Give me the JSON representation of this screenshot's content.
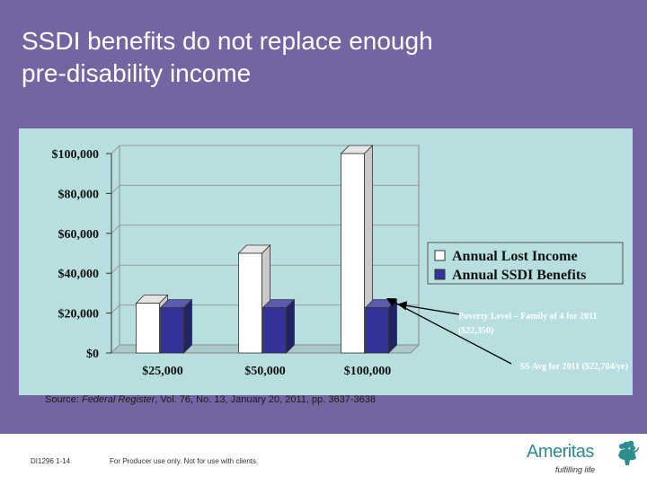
{
  "slide": {
    "title_line1": "SSDI benefits do not replace enough",
    "title_line2": "pre-disability income"
  },
  "chart_data": {
    "type": "bar",
    "categories": [
      "$25,000",
      "$50,000",
      "$100,000"
    ],
    "series": [
      {
        "name": "Annual Lost Income",
        "values": [
          25000,
          50000,
          100000
        ],
        "color": "#ffffff"
      },
      {
        "name": "Annual SSDI Benefits",
        "values": [
          22704,
          22704,
          22704
        ],
        "color": "#33339a"
      }
    ],
    "y_ticks": [
      0,
      20000,
      40000,
      60000,
      80000,
      100000
    ],
    "y_tick_labels": [
      "$0",
      "$20,000",
      "$40,000",
      "$60,000",
      "$80,000",
      "$100,000"
    ],
    "ylim": [
      0,
      100000
    ],
    "legend_position": "right",
    "annotations": [
      {
        "id": "poverty",
        "text_line1": "Poverty Level – Family of 4 for 2011",
        "text_line2": "($22,350)",
        "value": 22350
      },
      {
        "id": "ss_avg",
        "text": "SS Avg for 2011 ($22,704/yr)",
        "value": 22704
      }
    ]
  },
  "source": {
    "prefix": "Source: ",
    "journal": "Federal Register",
    "rest": ", Vol. 76, No. 13, January 20, 2011, pp. 3637-3638"
  },
  "footer": {
    "doc_id": "DI1296 1-14",
    "disclaimer": "For Producer use only. Not for use with clients.",
    "logo_name": "Ameritas",
    "logo_tagline": "fulfilling life",
    "logo_color": "#2d8d8d"
  }
}
